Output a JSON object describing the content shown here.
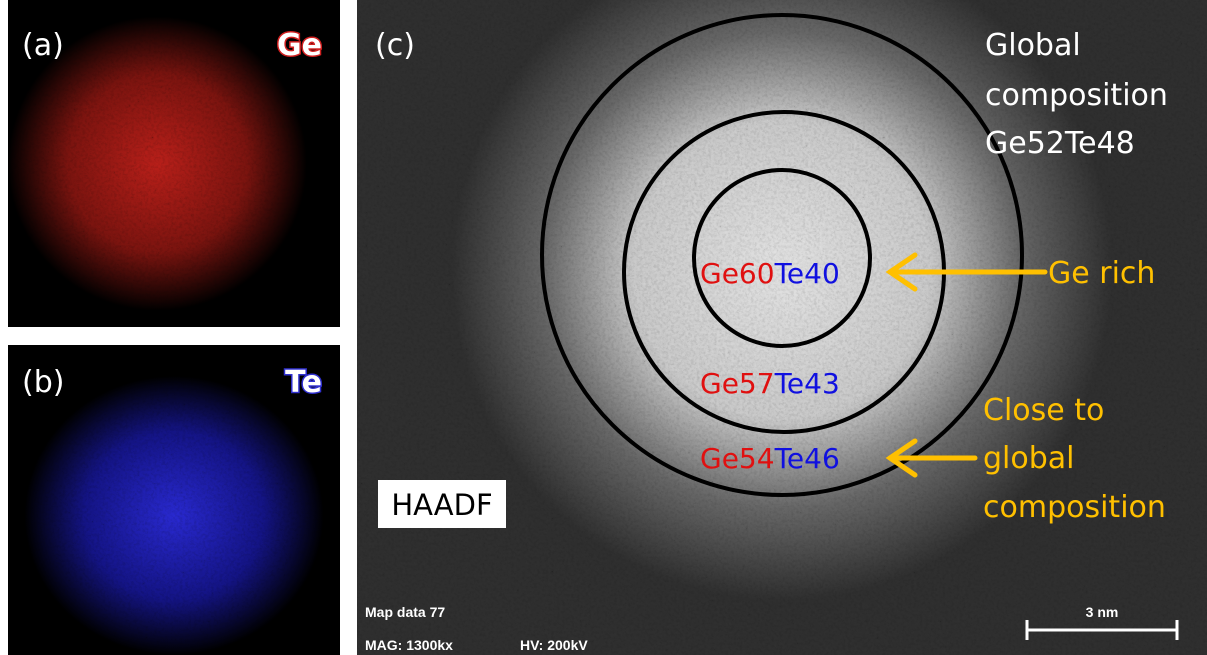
{
  "panel_a": {
    "label": "(a)",
    "element": "Ge"
  },
  "panel_b": {
    "label": "(b)",
    "element": "Te"
  },
  "panel_c": {
    "label": "(c)",
    "global_composition": [
      "Global",
      "composition",
      "Ge52Te48"
    ],
    "rings": [
      {
        "ge": "Ge60",
        "te": "Te40"
      },
      {
        "ge": "Ge57",
        "te": "Te43"
      },
      {
        "ge": "Ge54",
        "te": "Te46"
      }
    ],
    "annotation_inner": "Ge rich",
    "annotation_outer": [
      "Close to",
      "global",
      "composition"
    ],
    "detector": "HAADF",
    "map_info": "Map data 77",
    "magnification": "MAG: 1300kx",
    "voltage": "HV: 200kV",
    "scale_bar": "3 nm"
  }
}
